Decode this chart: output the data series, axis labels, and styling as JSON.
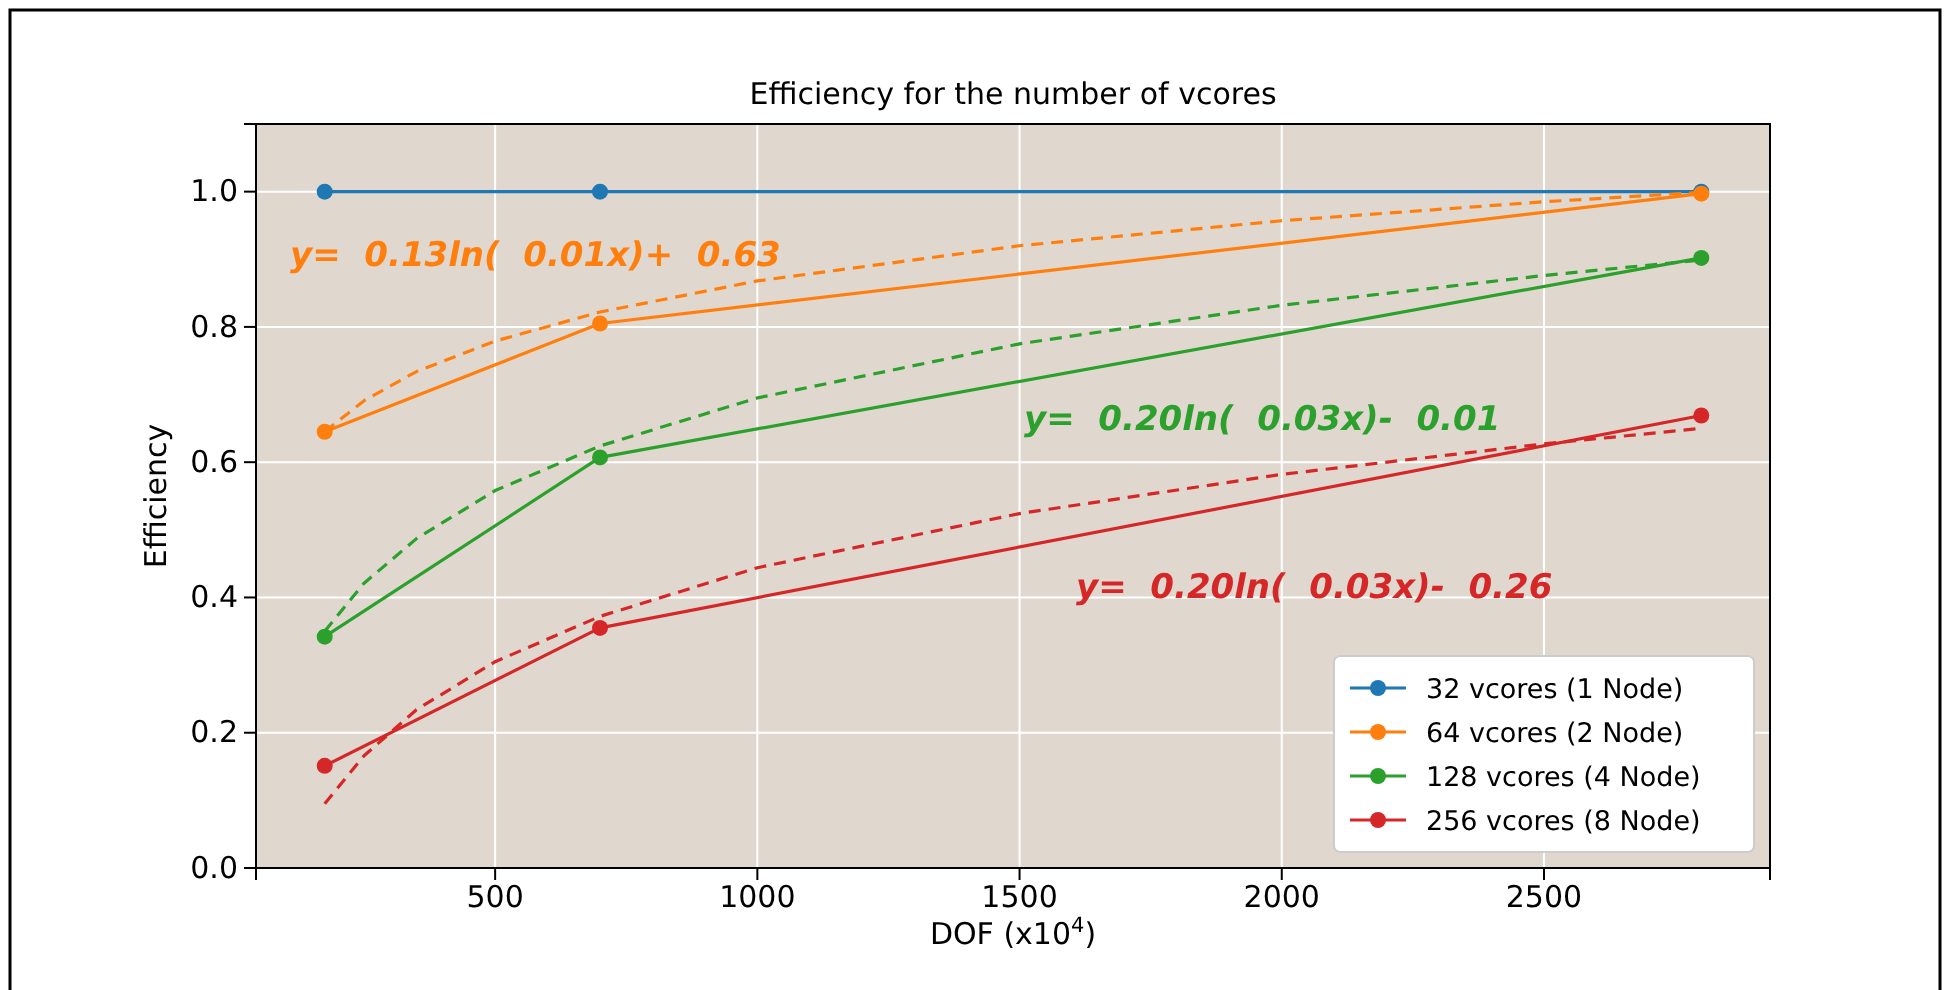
{
  "chart_data": {
    "type": "line",
    "title": "Efficiency for the number of vcores",
    "xlabel": "DOF (x10$^{4}$)",
    "ylabel": "Efficiency",
    "x": [
      175,
      700,
      2800
    ],
    "xlim": [
      44,
      2931
    ],
    "xticks": [
      500,
      1000,
      1500,
      2000,
      2500
    ],
    "ylim": [
      0,
      1.1
    ],
    "yticks": [
      {
        "value": 0,
        "label": "0.0"
      },
      {
        "value": 0.2,
        "label": "0.2"
      },
      {
        "value": 0.4,
        "label": "0.4"
      },
      {
        "value": 0.6,
        "label": "0.6"
      },
      {
        "value": 0.8,
        "label": "0.8"
      },
      {
        "value": 1,
        "label": "1.0"
      }
    ],
    "grid": true,
    "legend": "bottom right",
    "marker": "circle",
    "line_style": "solid",
    "series": [
      {
        "name": "32 vcores (1 Node)",
        "color": "#1f77b4",
        "values": [
          1,
          1,
          1
        ]
      },
      {
        "name": "64 vcores (2 Node)",
        "color": "#ff7f0e",
        "values": [
          0.645,
          0.805,
          0.997
        ]
      },
      {
        "name": "128 vcores (4 Node)",
        "color": "#2ca02c",
        "values": [
          0.342,
          0.607,
          0.902
        ]
      },
      {
        "name": "256 vcores (8 Node)",
        "color": "#d62728",
        "values": [
          0.151,
          0.355,
          0.669
        ]
      },
      {
        "color": "#ff7f0e",
        "marker": "none",
        "line_style": "dashed",
        "x": [
          175,
          250,
          350,
          500,
          700,
          1000,
          1500,
          2000,
          2500,
          2800
        ],
        "values": [
          0.645,
          0.691,
          0.734,
          0.779,
          0.822,
          0.868,
          0.92,
          0.957,
          0.985,
          0.999
        ]
      },
      {
        "color": "#2ca02c",
        "marker": "none",
        "line_style": "dashed",
        "x": [
          175,
          250,
          350,
          500,
          700,
          1000,
          1500,
          2000,
          2500,
          2800
        ],
        "values": [
          0.35,
          0.421,
          0.487,
          0.558,
          0.624,
          0.695,
          0.775,
          0.832,
          0.876,
          0.899
        ]
      },
      {
        "color": "#d62728",
        "marker": "none",
        "line_style": "dashed",
        "x": [
          175,
          250,
          350,
          500,
          700,
          1000,
          1500,
          2000,
          2500,
          2800
        ],
        "values": [
          0.095,
          0.166,
          0.234,
          0.305,
          0.372,
          0.444,
          0.524,
          0.582,
          0.627,
          0.65
        ]
      }
    ],
    "annotations": [
      "y=  0.13ln(  0.01x)+  0.63",
      "y=  0.20ln(  0.03x)-  0.01",
      "y=  0.20ln(  0.03x)-  0.26"
    ]
  }
}
